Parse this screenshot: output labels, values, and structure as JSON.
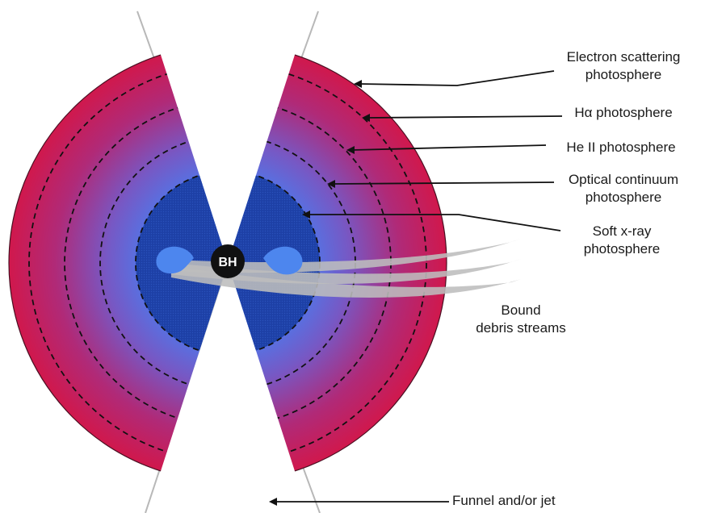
{
  "center_label": "BH",
  "labels": {
    "electron_scattering": [
      "Electron scattering",
      "photosphere"
    ],
    "h_alpha": "Hα photosphere",
    "he_ii": "He II photosphere",
    "optical_continuum": [
      "Optical continuum",
      "photosphere"
    ],
    "soft_xray": [
      "Soft x-ray",
      "photosphere"
    ],
    "debris_streams": [
      "Bound",
      "debris streams"
    ],
    "funnel": "Funnel and/or jet"
  },
  "colors": {
    "outer": "#d2174a",
    "mid": "#8e4ca8",
    "inner": "#3a72e8",
    "core": "#1b3ea8",
    "blob": "#4d86ee",
    "stream": "#bdbdbd",
    "bh": "#111111",
    "funnel_line": "#b8b8b8",
    "arrow": "#111111"
  }
}
